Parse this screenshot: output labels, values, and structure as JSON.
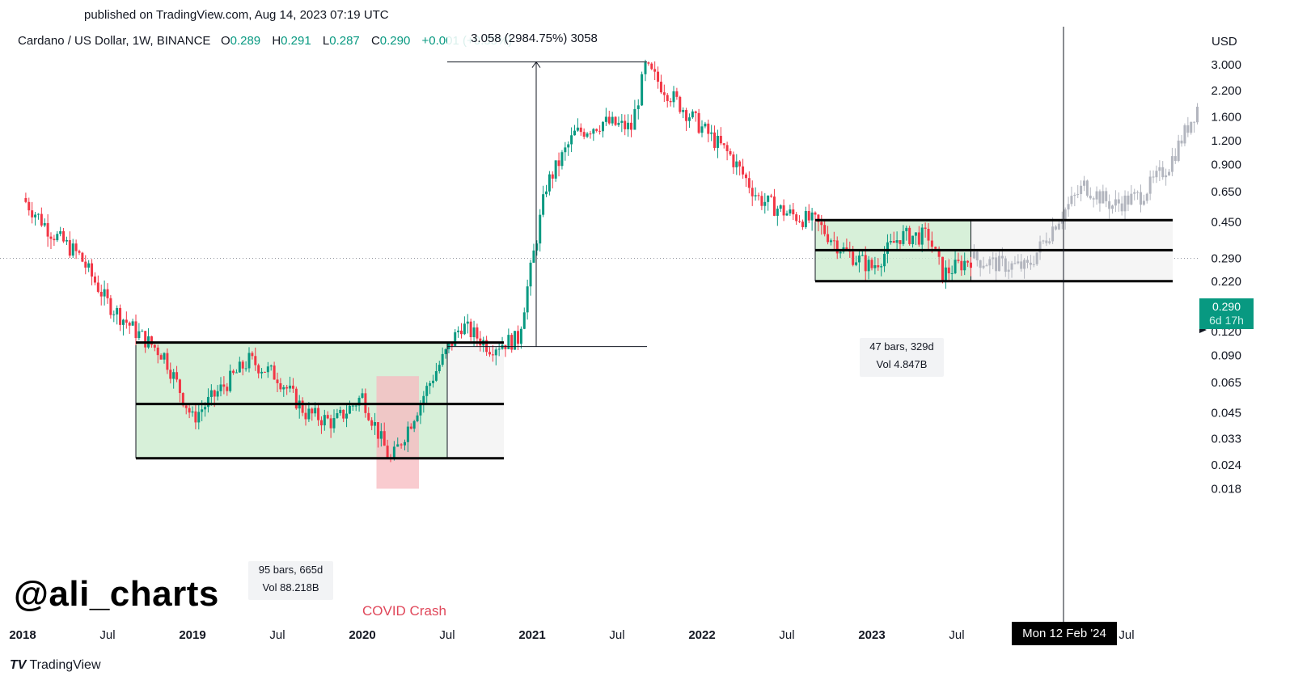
{
  "header": {
    "published": "published on TradingView.com, Aug 14, 2023 07:19 UTC",
    "symbol": "Cardano / US Dollar, 1W, BINANCE",
    "open_label": "O",
    "open": "0.289",
    "high_label": "H",
    "high": "0.291",
    "low_label": "L",
    "low": "0.287",
    "close_label": "C",
    "close": "0.290",
    "change": "+0.001 (+0.35%)"
  },
  "annotations": {
    "measure": "3.058 (2984.75%) 3058",
    "range1_bars": "95 bars, 665d",
    "range1_vol": "Vol 88.218B",
    "range2_bars": "47 bars, 329d",
    "range2_vol": "Vol 4.847B",
    "covid": "COVID Crash",
    "watermark": "@ali_charts",
    "crosshair_date": "Mon 12 Feb '24"
  },
  "price_axis": {
    "unit": "USD",
    "current_price": "0.290",
    "countdown": "6d 17h"
  },
  "brand": {
    "icon": "TV",
    "name": "TradingView"
  },
  "colors": {
    "up": "#089981",
    "down": "#f23645",
    "projection": "#b2b5be",
    "range_fill": "#cdeccf",
    "covid_fill": "#f7b9bf",
    "price_tag": "#089981"
  },
  "chart_data": {
    "type": "candlestick",
    "title": "Cardano / US Dollar, 1W, BINANCE",
    "ylabel": "USD",
    "y_scale": "log",
    "ylim": [
      0.016,
      3.3
    ],
    "y_ticks": [
      "3.000",
      "2.200",
      "1.600",
      "1.200",
      "0.900",
      "0.650",
      "0.450",
      "0.290",
      "0.220",
      "0.160",
      "0.120",
      "0.090",
      "0.065",
      "0.045",
      "0.033",
      "0.024",
      "0.018"
    ],
    "x_ticks": [
      "2018",
      "Jul",
      "2019",
      "Jul",
      "2020",
      "Jul",
      "2021",
      "Jul",
      "2022",
      "Jul",
      "2023",
      "Jul",
      "Jul"
    ],
    "x_ticks_bold": [
      true,
      false,
      true,
      false,
      true,
      false,
      true,
      false,
      true,
      false,
      true,
      false,
      false
    ],
    "series": [
      {
        "kind": "historical",
        "x": [
          "2018-01",
          "2018-03",
          "2018-05",
          "2018-07",
          "2018-09",
          "2018-11",
          "2019-01",
          "2019-03",
          "2019-05",
          "2019-07",
          "2019-09",
          "2019-11",
          "2020-01",
          "2020-03",
          "2020-04",
          "2020-06",
          "2020-08",
          "2020-10",
          "2020-12",
          "2021-02",
          "2021-04",
          "2021-06",
          "2021-08",
          "2021-09",
          "2021-11",
          "2022-01",
          "2022-03",
          "2022-05",
          "2022-07",
          "2022-09",
          "2022-11",
          "2023-01",
          "2023-03",
          "2023-05",
          "2023-06",
          "2023-08"
        ],
        "y": [
          0.6,
          0.4,
          0.3,
          0.17,
          0.12,
          0.09,
          0.042,
          0.06,
          0.085,
          0.07,
          0.045,
          0.04,
          0.055,
          0.025,
          0.035,
          0.07,
          0.13,
          0.1,
          0.11,
          0.7,
          1.3,
          1.5,
          1.4,
          2.9,
          2.0,
          1.4,
          1.0,
          0.6,
          0.5,
          0.45,
          0.32,
          0.26,
          0.38,
          0.38,
          0.24,
          0.29
        ]
      },
      {
        "kind": "projection",
        "x": [
          "2023-08",
          "2023-10",
          "2023-12",
          "2024-02",
          "2024-04",
          "2024-06",
          "2024-08",
          "2024-10",
          "2024-12"
        ],
        "y": [
          0.29,
          0.27,
          0.26,
          0.45,
          0.7,
          0.55,
          0.62,
          0.9,
          1.8
        ]
      }
    ],
    "ranges": [
      {
        "from": "2018-09",
        "to": "2020-07",
        "top": 0.105,
        "mid": 0.05,
        "bottom": 0.026,
        "bars": "95 bars",
        "days": "665d",
        "volume": "88.218B"
      },
      {
        "from": "2022-09",
        "to": "2023-08",
        "top": 0.46,
        "mid": 0.32,
        "bottom": 0.22,
        "bars": "47 bars",
        "days": "329d",
        "volume": "4.847B"
      }
    ],
    "measure": {
      "from": 0.1,
      "to": 3.1,
      "change": "3.058",
      "percent": "2984.75%",
      "ticks": "3058"
    }
  }
}
